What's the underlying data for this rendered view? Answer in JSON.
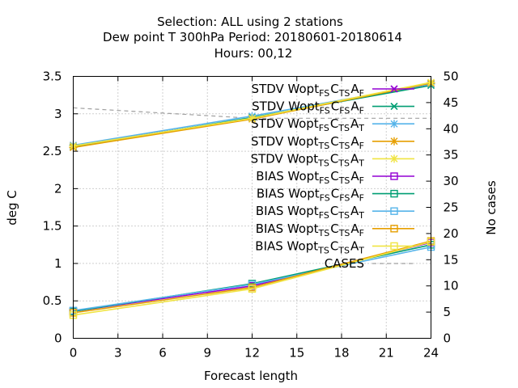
{
  "chart_data": {
    "type": "line",
    "title_lines": [
      "Selection: ALL using     2 stations",
      "Dew point T 300hPa   Period: 20180601-20180614",
      "Hours:  00,12"
    ],
    "xlabel": "Forecast length",
    "ylabel": "deg C",
    "y2label": "No cases",
    "x_ticks": [
      "0",
      "3",
      "6",
      "9",
      "12",
      "15",
      "18",
      "21",
      "24"
    ],
    "y_ticks": [
      "0",
      "0.5",
      "1",
      "1.5",
      "2",
      "2.5",
      "3",
      "3.5"
    ],
    "y2_ticks": [
      "0",
      "5",
      "10",
      "15",
      "20",
      "25",
      "30",
      "35",
      "40",
      "45",
      "50"
    ],
    "xlim": [
      0,
      24
    ],
    "ylim": [
      0,
      3.5
    ],
    "y2lim": [
      0,
      50
    ],
    "grid": true,
    "legend_position": "top-right",
    "series": [
      {
        "name": "STDV Wopt_FS C_TS A_F",
        "name_parts": [
          "STDV Wopt",
          "FS",
          "C",
          "TS",
          "A",
          "F"
        ],
        "axis": "y",
        "color": "#9400d3",
        "marker": "x",
        "dash": false,
        "x": [
          0,
          12,
          24
        ],
        "y": [
          2.57,
          2.94,
          3.4
        ]
      },
      {
        "name": "STDV Wopt_FS C_FS A_F",
        "name_parts": [
          "STDV Wopt",
          "FS",
          "C",
          "FS",
          "A",
          "F"
        ],
        "axis": "y",
        "color": "#009e73",
        "marker": "x",
        "dash": false,
        "x": [
          0,
          12,
          24
        ],
        "y": [
          2.56,
          2.95,
          3.38
        ]
      },
      {
        "name": "STDV Wopt_FS C_TS A_T",
        "name_parts": [
          "STDV Wopt",
          "FS",
          "C",
          "TS",
          "A",
          "T"
        ],
        "axis": "y",
        "color": "#56b4e9",
        "marker": "star",
        "dash": false,
        "x": [
          0,
          12,
          24
        ],
        "y": [
          2.58,
          2.97,
          3.4
        ]
      },
      {
        "name": "STDV Wopt_TS C_TS A_F",
        "name_parts": [
          "STDV Wopt",
          "TS",
          "C",
          "TS",
          "A",
          "F"
        ],
        "axis": "y",
        "color": "#e69f00",
        "marker": "star",
        "dash": false,
        "x": [
          0,
          12,
          24
        ],
        "y": [
          2.55,
          2.93,
          3.41
        ]
      },
      {
        "name": "STDV Wopt_TS C_TS A_T",
        "name_parts": [
          "STDV Wopt",
          "TS",
          "C",
          "TS",
          "A",
          "T"
        ],
        "axis": "y",
        "color": "#f0e442",
        "marker": "star",
        "dash": false,
        "x": [
          0,
          12,
          24
        ],
        "y": [
          2.57,
          2.94,
          3.42
        ]
      },
      {
        "name": "BIAS Wopt_FS C_TS A_F",
        "name_parts": [
          "BIAS Wopt",
          "FS",
          "C",
          "TS",
          "A",
          "F"
        ],
        "axis": "y",
        "color": "#9400d3",
        "marker": "square",
        "dash": false,
        "x": [
          0,
          12,
          24
        ],
        "y": [
          0.36,
          0.7,
          1.28
        ]
      },
      {
        "name": "BIAS Wopt_FS C_FS A_F",
        "name_parts": [
          "BIAS Wopt",
          "FS",
          "C",
          "FS",
          "A",
          "F"
        ],
        "axis": "y",
        "color": "#009e73",
        "marker": "square",
        "dash": false,
        "x": [
          0,
          12,
          24
        ],
        "y": [
          0.36,
          0.73,
          1.25
        ]
      },
      {
        "name": "BIAS Wopt_FS C_TS A_T",
        "name_parts": [
          "BIAS Wopt",
          "FS",
          "C",
          "TS",
          "A",
          "T"
        ],
        "axis": "y",
        "color": "#56b4e9",
        "marker": "square",
        "dash": false,
        "x": [
          0,
          12,
          24
        ],
        "y": [
          0.37,
          0.72,
          1.22
        ]
      },
      {
        "name": "BIAS Wopt_TS C_TS A_F",
        "name_parts": [
          "BIAS Wopt",
          "TS",
          "C",
          "TS",
          "A",
          "F"
        ],
        "axis": "y",
        "color": "#e69f00",
        "marker": "square",
        "dash": false,
        "x": [
          0,
          12,
          24
        ],
        "y": [
          0.34,
          0.68,
          1.3
        ]
      },
      {
        "name": "BIAS Wopt_TS C_TS A_T",
        "name_parts": [
          "BIAS Wopt",
          "TS",
          "C",
          "TS",
          "A",
          "T"
        ],
        "axis": "y",
        "color": "#f0e442",
        "marker": "square",
        "dash": false,
        "x": [
          0,
          12,
          24
        ],
        "y": [
          0.31,
          0.66,
          1.29
        ]
      },
      {
        "name": "CASES",
        "name_parts": [
          "CASES"
        ],
        "axis": "y2",
        "color": "#a0a0a0",
        "marker": "none",
        "dash": true,
        "x": [
          0,
          12,
          24
        ],
        "y": [
          44,
          42,
          42
        ]
      }
    ]
  }
}
